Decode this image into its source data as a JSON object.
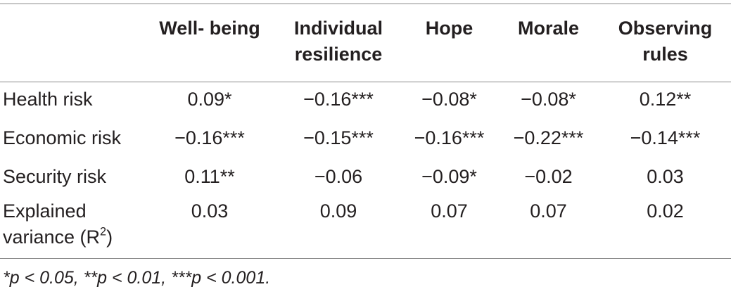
{
  "table": {
    "headers": [
      "",
      "Well- being",
      "Individual resilience",
      "Hope",
      "Morale",
      "Observing rules"
    ],
    "rows": [
      {
        "label": "Health risk",
        "cells": [
          "0.09*",
          "−0.16***",
          "−0.08*",
          "−0.08*",
          "0.12**"
        ]
      },
      {
        "label": "Economic risk",
        "cells": [
          "−0.16***",
          "−0.15***",
          "−0.16***",
          "−0.22***",
          "−0.14***"
        ]
      },
      {
        "label": "Security risk",
        "cells": [
          "0.11**",
          "−0.06",
          "−0.09*",
          "−0.02",
          "0.03"
        ]
      },
      {
        "label_line1": "Explained",
        "label_line2_prefix": "variance (R",
        "label_line2_sup": "2",
        "label_line2_suffix": ")",
        "cells": [
          "0.03",
          "0.09",
          "0.07",
          "0.07",
          "0.02"
        ]
      }
    ]
  },
  "footnote": "*p < 0.05, **p < 0.01, ***p < 0.001."
}
